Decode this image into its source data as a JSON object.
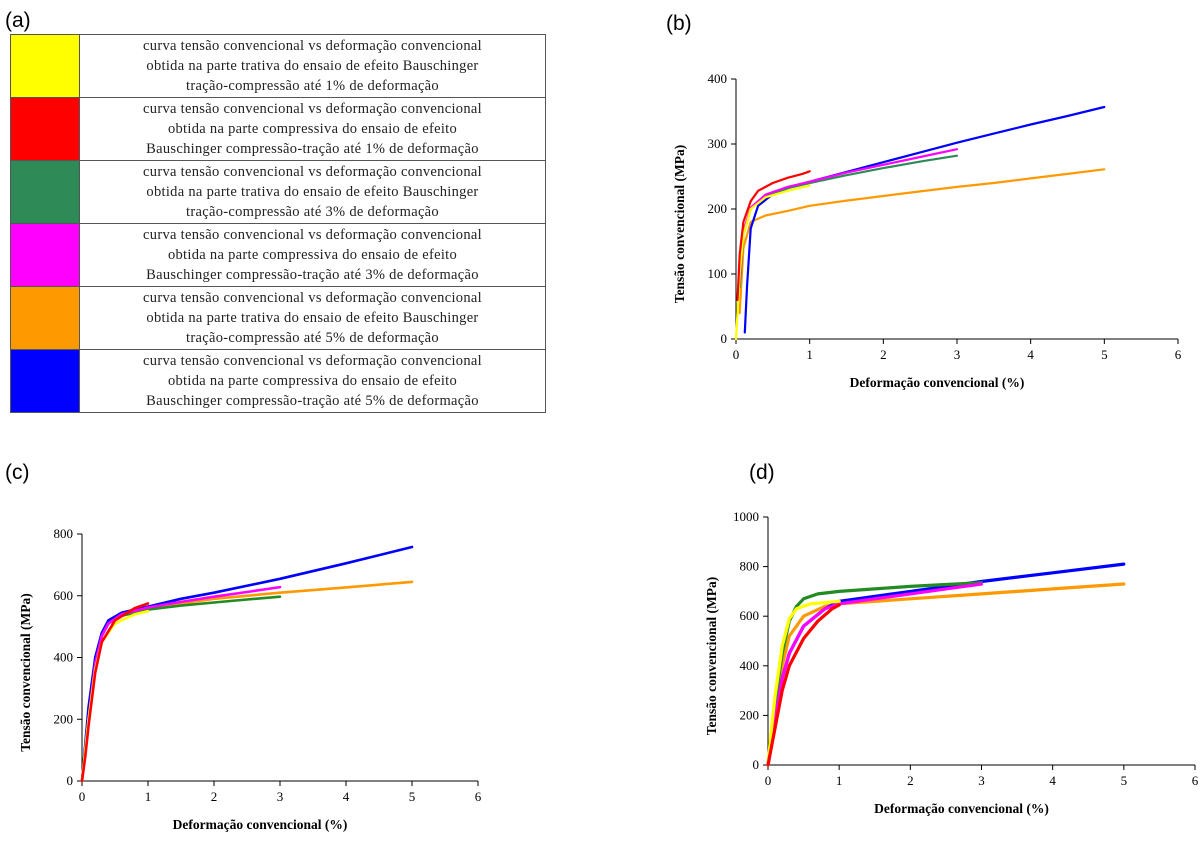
{
  "panels": {
    "a": "(a)",
    "b": "(b)",
    "c": "(c)",
    "d": "(d)"
  },
  "legend": [
    {
      "color": "#ffff00",
      "text": [
        "curva tensão convencional vs deformação convencional",
        "obtida na parte trativa do ensaio de efeito Bauschinger",
        "tração-compressão até 1% de deformação"
      ]
    },
    {
      "color": "#ff0000",
      "text": [
        "curva tensão convencional vs deformação convencional",
        "obtida na parte compressiva do ensaio de efeito",
        "Bauschinger compressão-tração até 1% de deformação"
      ]
    },
    {
      "color": "#2e8b57",
      "text": [
        "curva tensão convencional vs deformação convencional",
        "obtida na parte trativa do ensaio de efeito Bauschinger",
        "tração-compressão até 3% de deformação"
      ]
    },
    {
      "color": "#ff00ff",
      "text": [
        "curva tensão convencional vs deformação convencional",
        "obtida na parte compressiva do ensaio de efeito",
        "Bauschinger compressão-tração até 3% de deformação"
      ]
    },
    {
      "color": "#ff9900",
      "text": [
        "curva tensão convencional vs deformação convencional",
        "obtida na parte trativa do ensaio de efeito Bauschinger",
        "tração-compressão até 5% de deformação"
      ]
    },
    {
      "color": "#0000ff",
      "text": [
        "curva tensão convencional vs deformação convencional",
        "obtida na parte compressiva do ensaio de efeito",
        "Bauschinger compressão-tração até 5% de deformação"
      ]
    }
  ],
  "chart_data": [
    {
      "panel": "b",
      "type": "line",
      "xlabel": "Deformação convencional (%)",
      "ylabel": "Tensão convencional (MPa)",
      "xlim": [
        0,
        6
      ],
      "ylim": [
        0,
        400
      ],
      "xticks": [
        0,
        1,
        2,
        3,
        4,
        5,
        6
      ],
      "yticks": [
        0,
        100,
        200,
        300,
        400
      ],
      "series": [
        {
          "color": "#ff9900",
          "x": [
            0.05,
            0.1,
            0.2,
            0.4,
            0.7,
            1,
            1.5,
            2,
            2.5,
            3,
            3.5,
            4,
            4.5,
            5
          ],
          "y": [
            40,
            140,
            180,
            190,
            197,
            205,
            213,
            220,
            227,
            234,
            240,
            247,
            254,
            261
          ]
        },
        {
          "color": "#0000ff",
          "x": [
            0.12,
            0.15,
            0.2,
            0.3,
            0.5,
            0.7,
            1,
            1.5,
            2,
            2.5,
            3,
            3.5,
            4,
            4.5,
            5
          ],
          "y": [
            10,
            80,
            170,
            205,
            223,
            232,
            242,
            257,
            272,
            287,
            302,
            316,
            330,
            343,
            357
          ]
        },
        {
          "color": "#2e8b57",
          "x": [
            0.05,
            0.1,
            0.2,
            0.4,
            0.7,
            1,
            1.5,
            2,
            2.5,
            3
          ],
          "y": [
            80,
            160,
            200,
            220,
            232,
            240,
            252,
            263,
            273,
            282
          ]
        },
        {
          "color": "#ff00ff",
          "x": [
            0.05,
            0.1,
            0.2,
            0.4,
            0.7,
            1,
            1.5,
            2,
            2.5,
            3
          ],
          "y": [
            90,
            165,
            202,
            222,
            234,
            242,
            256,
            268,
            280,
            292
          ]
        },
        {
          "color": "#ffff00",
          "x": [
            0,
            0.02,
            0.05,
            0.1,
            0.2,
            0.4,
            0.7,
            1
          ],
          "y": [
            0,
            40,
            100,
            160,
            200,
            218,
            228,
            236
          ]
        },
        {
          "color": "#ff0000",
          "x": [
            0.02,
            0.05,
            0.1,
            0.2,
            0.3,
            0.5,
            0.7,
            0.9,
            1
          ],
          "y": [
            60,
            130,
            180,
            212,
            228,
            240,
            248,
            254,
            258
          ]
        }
      ]
    },
    {
      "panel": "c",
      "type": "line",
      "xlabel": "Deformação convencional (%)",
      "ylabel": "Tensão convencional (MPa)",
      "xlim": [
        0,
        6
      ],
      "ylim": [
        0,
        800
      ],
      "xticks": [
        0,
        1,
        2,
        3,
        4,
        5,
        6
      ],
      "yticks": [
        0,
        200,
        400,
        600,
        800
      ],
      "series": [
        {
          "color": "#ff9900",
          "x": [
            0,
            0.1,
            0.2,
            0.3,
            0.4,
            0.6,
            1,
            1.5,
            2,
            3,
            4,
            5
          ],
          "y": [
            0,
            200,
            380,
            470,
            510,
            540,
            560,
            575,
            590,
            610,
            627,
            645
          ]
        },
        {
          "color": "#0000ff",
          "x": [
            0,
            0.1,
            0.2,
            0.3,
            0.4,
            0.6,
            1,
            1.5,
            2,
            3,
            4,
            5
          ],
          "y": [
            0,
            240,
            400,
            480,
            520,
            545,
            565,
            590,
            610,
            655,
            705,
            758
          ]
        },
        {
          "color": "#228b22",
          "x": [
            0,
            0.1,
            0.2,
            0.3,
            0.4,
            0.6,
            1,
            1.5,
            2,
            2.5,
            3
          ],
          "y": [
            0,
            200,
            380,
            470,
            510,
            535,
            555,
            568,
            578,
            588,
            597
          ]
        },
        {
          "color": "#ff00ff",
          "x": [
            0,
            0.1,
            0.2,
            0.3,
            0.4,
            0.6,
            1,
            1.5,
            2,
            2.5,
            3
          ],
          "y": [
            0,
            200,
            380,
            470,
            510,
            540,
            562,
            580,
            597,
            612,
            628
          ]
        },
        {
          "color": "#ffff00",
          "x": [
            0,
            0.05,
            0.1,
            0.2,
            0.3,
            0.5,
            0.8,
            1
          ],
          "y": [
            0,
            100,
            200,
            360,
            450,
            510,
            540,
            550
          ]
        },
        {
          "color": "#ff0000",
          "x": [
            0,
            0.05,
            0.1,
            0.2,
            0.3,
            0.5,
            0.8,
            1
          ],
          "y": [
            0,
            80,
            180,
            350,
            450,
            520,
            560,
            575
          ]
        }
      ]
    },
    {
      "panel": "d",
      "type": "line",
      "xlabel": "Deformação convencional (%)",
      "ylabel": "Tensão convencional (MPa)",
      "xlim": [
        0,
        6
      ],
      "ylim": [
        0,
        1000
      ],
      "xticks": [
        0,
        1,
        2,
        3,
        4,
        5,
        6
      ],
      "yticks": [
        0,
        200,
        400,
        600,
        800,
        1000
      ],
      "series": [
        {
          "color": "#ff9900",
          "x": [
            0,
            0.1,
            0.2,
            0.3,
            0.5,
            0.8,
            1,
            2,
            3,
            4,
            5
          ],
          "y": [
            0,
            200,
            400,
            520,
            600,
            640,
            650,
            670,
            690,
            710,
            730
          ]
        },
        {
          "color": "#0000ff",
          "x": [
            0,
            0.1,
            0.2,
            0.3,
            0.5,
            0.8,
            1,
            2,
            3,
            4,
            5
          ],
          "y": [
            0,
            180,
            350,
            450,
            560,
            630,
            660,
            700,
            740,
            775,
            810
          ]
        },
        {
          "color": "#228b22",
          "x": [
            0,
            0.1,
            0.2,
            0.3,
            0.4,
            0.5,
            0.7,
            1,
            1.5,
            2,
            2.5,
            3
          ],
          "y": [
            0,
            250,
            450,
            580,
            640,
            670,
            690,
            700,
            710,
            720,
            728,
            735
          ]
        },
        {
          "color": "#ff00ff",
          "x": [
            0,
            0.1,
            0.2,
            0.3,
            0.5,
            0.8,
            1,
            1.5,
            2,
            2.5,
            3
          ],
          "y": [
            0,
            180,
            350,
            450,
            560,
            630,
            650,
            670,
            690,
            710,
            730
          ]
        },
        {
          "color": "#ffff00",
          "x": [
            0,
            0.05,
            0.1,
            0.2,
            0.3,
            0.4,
            0.6,
            0.8,
            1
          ],
          "y": [
            0,
            150,
            280,
            480,
            590,
            630,
            650,
            655,
            660
          ]
        },
        {
          "color": "#ff0000",
          "x": [
            0,
            0.1,
            0.2,
            0.3,
            0.5,
            0.7,
            0.9,
            1
          ],
          "y": [
            0,
            150,
            300,
            400,
            510,
            580,
            630,
            645
          ]
        }
      ]
    }
  ]
}
